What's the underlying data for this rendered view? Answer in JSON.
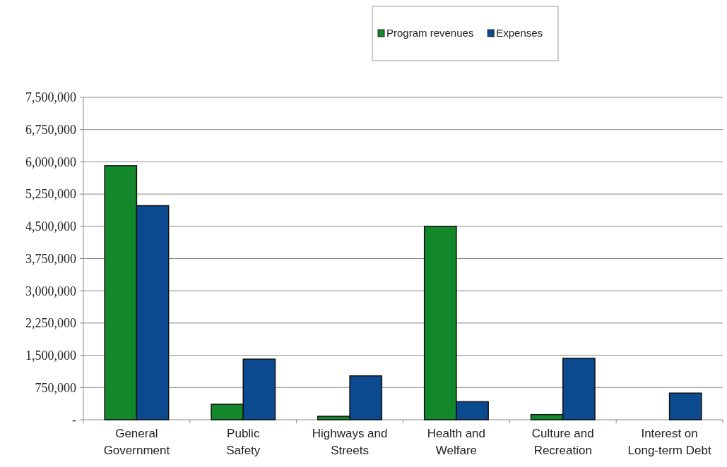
{
  "chart_data": {
    "type": "bar",
    "categories": [
      "General Government",
      "Public Safety",
      "Highways and Streets",
      "Health and Welfare",
      "Culture and Recreation",
      "Interest on Long-term Debt"
    ],
    "series": [
      {
        "name": "Program revenues",
        "color": "#12882a",
        "values": [
          5910000,
          360000,
          80000,
          4500000,
          120000,
          0
        ]
      },
      {
        "name": "Expenses",
        "color": "#0c4a90",
        "values": [
          4980000,
          1410000,
          1020000,
          420000,
          1430000,
          620000
        ]
      }
    ],
    "ylim": [
      0,
      7500000
    ],
    "yticks": [
      {
        "value": 0,
        "label": "-"
      },
      {
        "value": 750000,
        "label": "750,000"
      },
      {
        "value": 1500000,
        "label": "1,500,000"
      },
      {
        "value": 2250000,
        "label": "2,250,000"
      },
      {
        "value": 3000000,
        "label": "3,000,000"
      },
      {
        "value": 3750000,
        "label": "3,750,000"
      },
      {
        "value": 4500000,
        "label": "4,500,000"
      },
      {
        "value": 5250000,
        "label": "5,250,000"
      },
      {
        "value": 6000000,
        "label": "6,000,000"
      },
      {
        "value": 6750000,
        "label": "6,750,000"
      },
      {
        "value": 7500000,
        "label": "7,500,000"
      }
    ],
    "grid": "y",
    "legend": "top"
  }
}
